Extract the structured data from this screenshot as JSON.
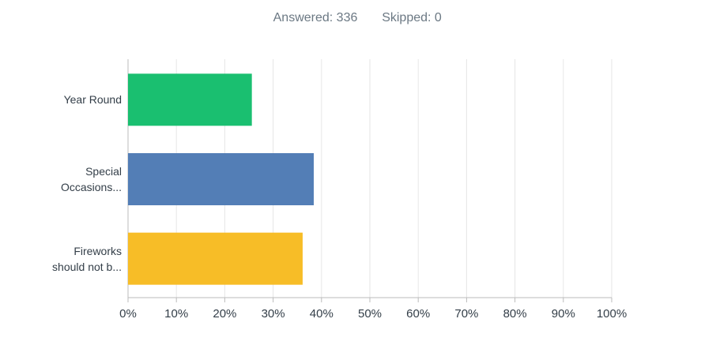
{
  "chart_data": {
    "type": "hbar",
    "answered": "Answered: 336",
    "skipped": "Skipped: 0",
    "categories": [
      "Year Round",
      "Special Occasions...",
      "Fireworks should not b..."
    ],
    "values": [
      25.6,
      38.4,
      36.1
    ],
    "colors": [
      "#1abf70",
      "#537eb6",
      "#f7bd27"
    ],
    "xlim": [
      0,
      100
    ],
    "xticks": [
      {
        "value": 0,
        "label": "0%"
      },
      {
        "value": 10,
        "label": "10%"
      },
      {
        "value": 20,
        "label": "20%"
      },
      {
        "value": 30,
        "label": "30%"
      },
      {
        "value": 40,
        "label": "40%"
      },
      {
        "value": 50,
        "label": "50%"
      },
      {
        "value": 60,
        "label": "60%"
      },
      {
        "value": 70,
        "label": "70%"
      },
      {
        "value": 80,
        "label": "80%"
      },
      {
        "value": 90,
        "label": "90%"
      },
      {
        "value": 100,
        "label": "100%"
      }
    ],
    "grid": true
  }
}
